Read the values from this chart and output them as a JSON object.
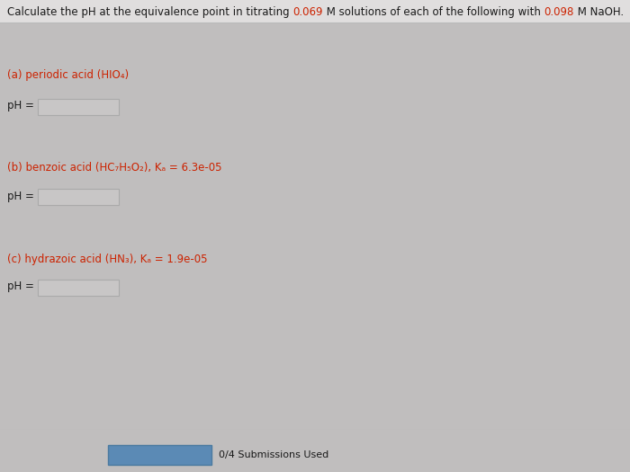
{
  "bg_color": "#c0bebe",
  "panel_color": "#d6d4d4",
  "header_bg": "#e0dede",
  "highlight_color": "#cc2200",
  "text_color": "#1a1a1a",
  "label_color": "#cc2200",
  "section_a_label": "(a) periodic acid (HIO₄)",
  "section_b_label": "(b) benzoic acid (HC₇H₅O₂), Kₐ = 6.3e-05",
  "section_c_label": "(c) hydrazoic acid (HN₃), Kₐ = 1.9e-05",
  "ph_label": "pH =",
  "input_box_color": "#c8c6c6",
  "input_box_edge": "#aaaaaa",
  "bottom_text": "0/4 Submissions Used",
  "bottom_box_color": "#5b8ab5",
  "title_parts": [
    [
      "Calculate the pH at the equivalence point in titrating ",
      "#1a1a1a"
    ],
    [
      "0.069",
      "#cc2200"
    ],
    [
      " M solutions of each of the following with ",
      "#1a1a1a"
    ],
    [
      "0.098",
      "#cc2200"
    ],
    [
      " M NaOH.",
      "#1a1a1a"
    ]
  ],
  "fontsize_title": 8.5,
  "fontsize_body": 8.5
}
